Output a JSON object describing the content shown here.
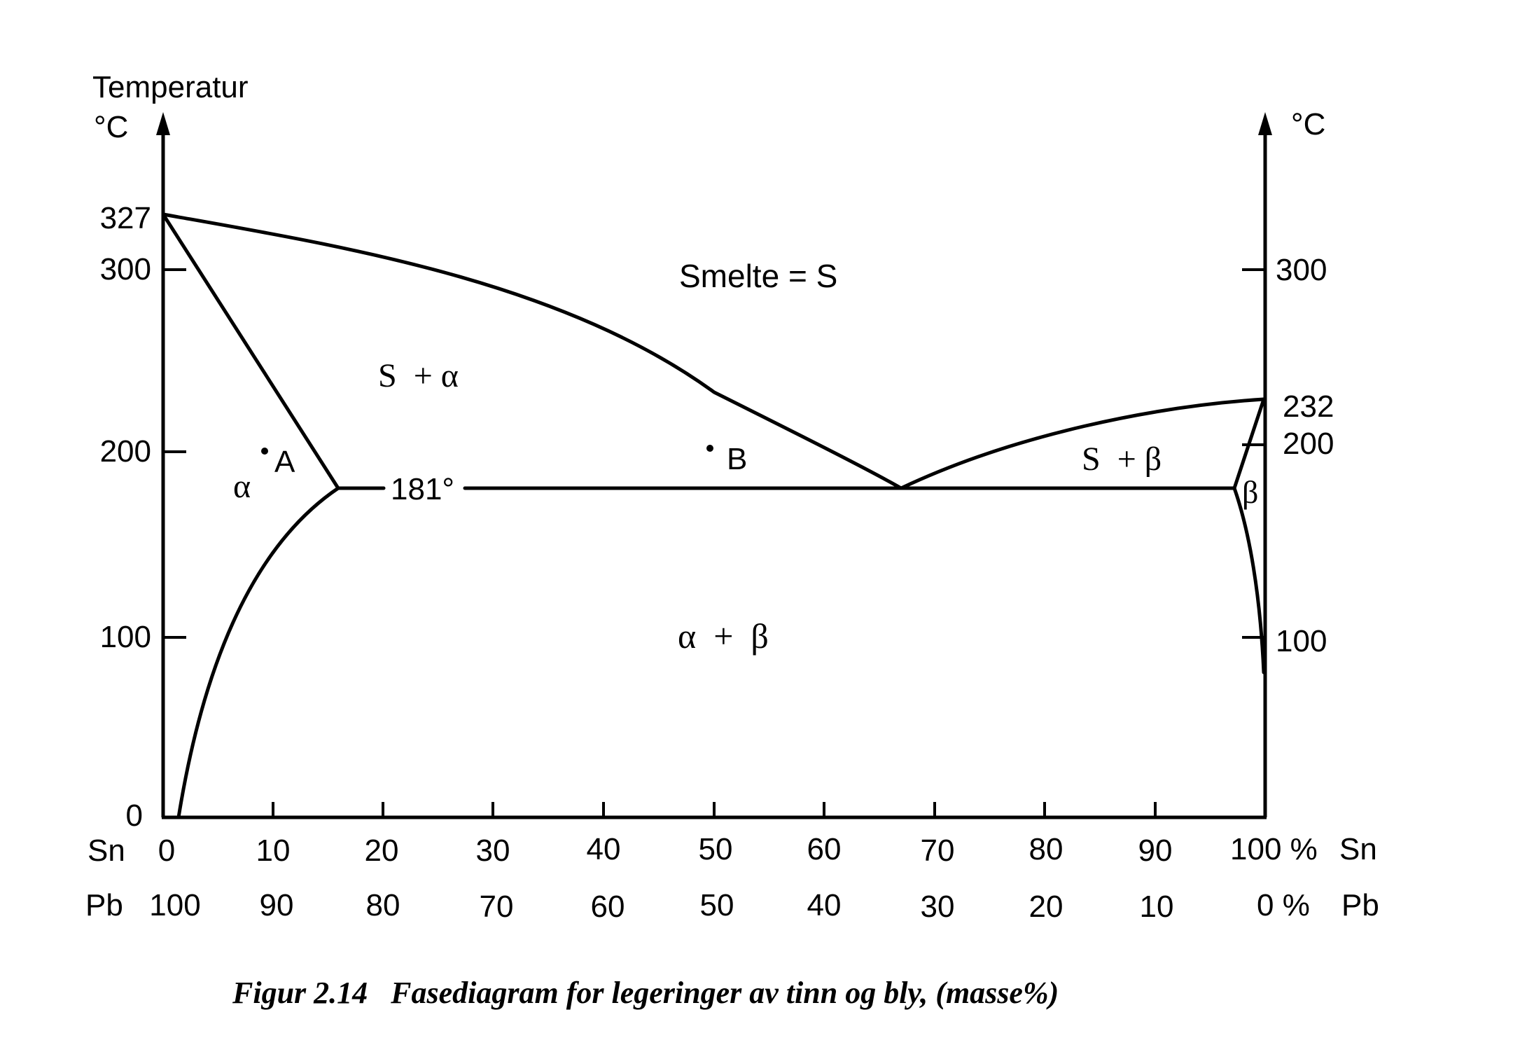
{
  "left_axis": {
    "title_line1": "Temperatur",
    "unit": "°C",
    "ticks": [
      {
        "value": 327,
        "label": "327"
      },
      {
        "value": 300,
        "label": "300"
      },
      {
        "value": 200,
        "label": "200"
      },
      {
        "value": 100,
        "label": "100"
      },
      {
        "value": 0,
        "label": "0"
      }
    ]
  },
  "right_axis": {
    "unit": "°C",
    "ticks": [
      {
        "value": 300,
        "label": "300"
      },
      {
        "value": 232,
        "label": "232"
      },
      {
        "value": 200,
        "label": "200"
      },
      {
        "value": 100,
        "label": "100"
      }
    ]
  },
  "x_axis": {
    "sn_name": "Sn",
    "pb_name": "Pb",
    "sn_labels": [
      "0",
      "10",
      "20",
      "30",
      "40",
      "50",
      "60",
      "70",
      "80",
      "90",
      "100 %"
    ],
    "pb_labels": [
      "100",
      "90",
      "80",
      "70",
      "60",
      "50",
      "40",
      "30",
      "20",
      "10",
      "0 %"
    ]
  },
  "regions": {
    "melt": "Smelte = S",
    "s_alpha": "S  + α",
    "alpha": "α",
    "alpha_beta": "α  +  β",
    "s_beta": "S  + β",
    "beta": "β"
  },
  "points": {
    "a": "A",
    "b": "B"
  },
  "eutectic_label": "181°",
  "caption": "Figur 2.14   Fasediagram for legeringer av tinn og bly, (masse%)"
}
